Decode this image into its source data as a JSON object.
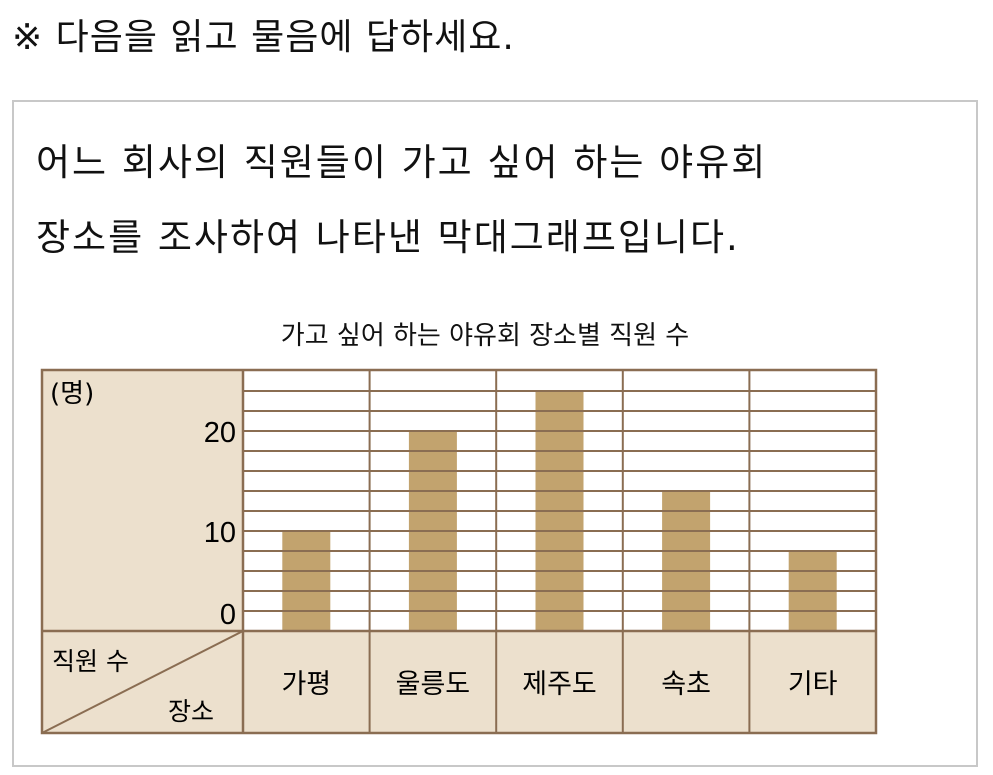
{
  "instruction": "※ 다음을 읽고 물음에 답하세요.",
  "passage": [
    "어느 회사의 직원들이 가고 싶어 하는 야유회",
    "장소를 조사하여 나타낸 막대그래프입니다."
  ],
  "chart_data": {
    "type": "bar",
    "title": "가고 싶어 하는 야유회 장소별 직원 수",
    "unit_label": "(명)",
    "row_header_value": "직원 수",
    "row_header_category": "장소",
    "categories": [
      "가평",
      "울릉도",
      "제주도",
      "속초",
      "기타"
    ],
    "values": [
      10,
      20,
      24,
      14,
      8
    ],
    "yticks": [
      0,
      10,
      20
    ],
    "ylim": [
      0,
      26
    ],
    "grid_step": 2,
    "colors": {
      "bar": "#c2a36e",
      "header": "#ece0cd",
      "line": "#8a6d52"
    }
  }
}
